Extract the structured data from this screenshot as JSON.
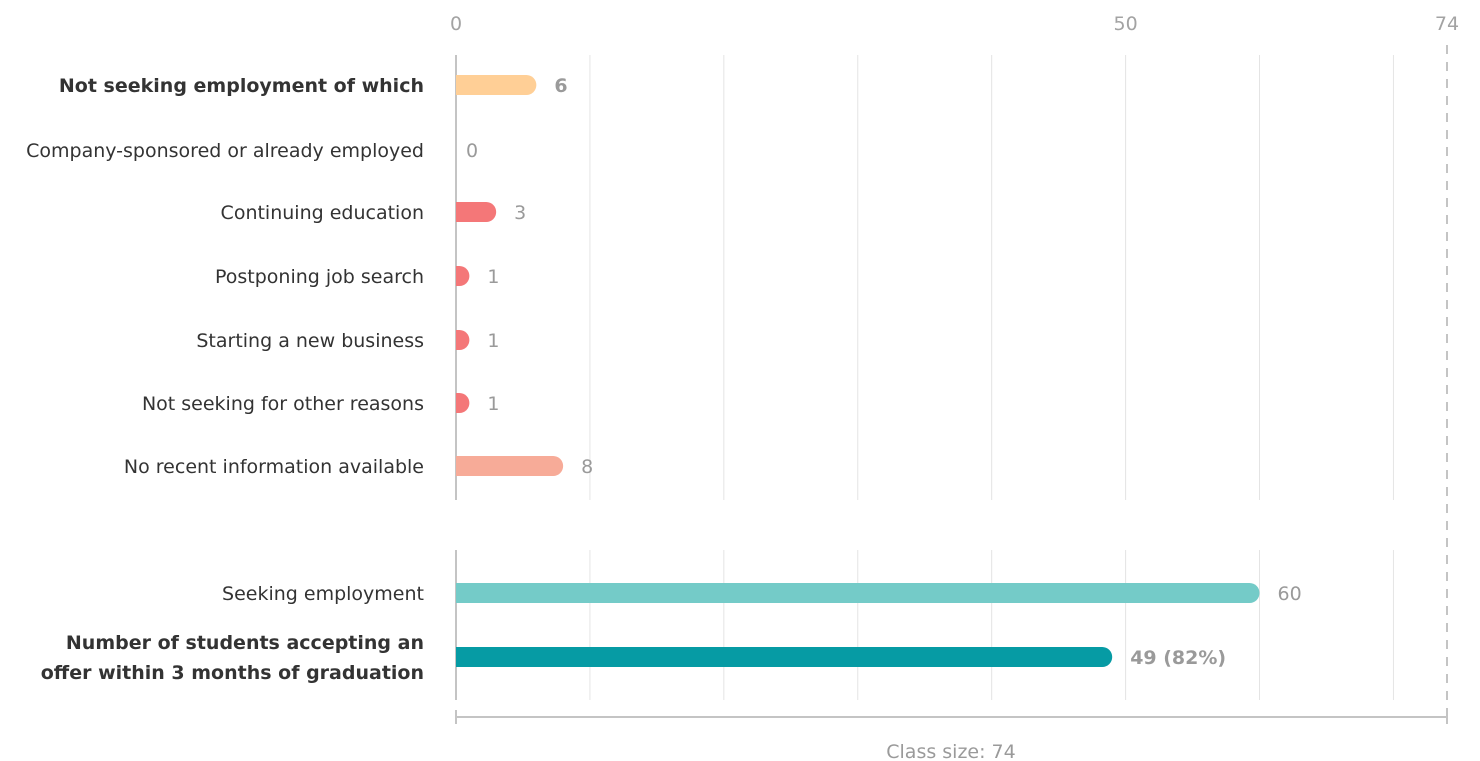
{
  "chart_data": {
    "type": "bar",
    "orientation": "horizontal",
    "xlim": [
      0,
      74
    ],
    "x_ticks": [
      "0",
      "50",
      "74"
    ],
    "grid": true,
    "groups": [
      {
        "rows": [
          {
            "label": "Not seeking employment of which",
            "value": 6,
            "value_label": "6",
            "bold": true,
            "color": "#FFCF96"
          },
          {
            "label": "Company-sponsored or already employed",
            "value": 0,
            "value_label": "0",
            "bold": false,
            "color": "#F47778"
          },
          {
            "label": "Continuing education",
            "value": 3,
            "value_label": "3",
            "bold": false,
            "color": "#F47778"
          },
          {
            "label": "Postponing job search",
            "value": 1,
            "value_label": "1",
            "bold": false,
            "color": "#F47778"
          },
          {
            "label": "Starting a new business",
            "value": 1,
            "value_label": "1",
            "bold": false,
            "color": "#F47778"
          },
          {
            "label": "Not seeking for other reasons",
            "value": 1,
            "value_label": "1",
            "bold": false,
            "color": "#F47778"
          },
          {
            "label": "No recent information available",
            "value": 8,
            "value_label": "8",
            "bold": false,
            "color": "#F7AB98"
          }
        ]
      },
      {
        "rows": [
          {
            "label": "Seeking employment",
            "value": 60,
            "value_label": "60",
            "bold": false,
            "color": "#74CBC8"
          },
          {
            "label": [
              "Number of students accepting an",
              "offer within 3 months of graduation"
            ],
            "value": 49,
            "value_label": "49 (82%)",
            "bold": true,
            "color": "#069BA4"
          }
        ]
      }
    ],
    "footer_label": "Class size: 74"
  }
}
